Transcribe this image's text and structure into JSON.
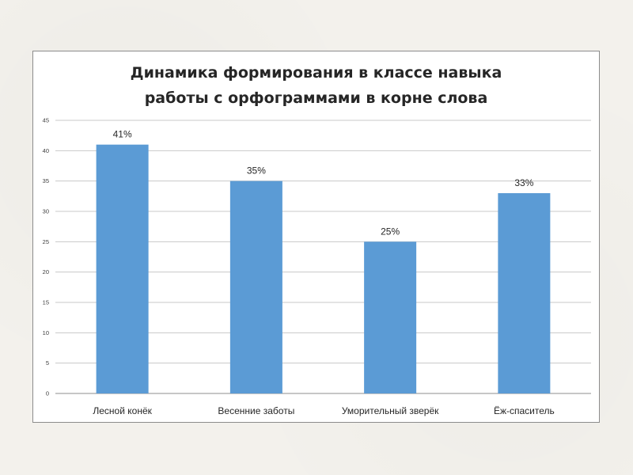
{
  "chart_data": {
    "type": "bar",
    "title_line1": "Динамика формирования в классе навыка",
    "title_line2": "работы с орфограммами в корне слова",
    "categories": [
      "Лесной конёк",
      "Весенние заботы",
      "Уморительный зверёк",
      "Ёж-спаситель"
    ],
    "values": [
      41,
      35,
      25,
      33
    ],
    "data_labels": [
      "41%",
      "35%",
      "25%",
      "33%"
    ],
    "y_ticks": [
      0,
      5,
      10,
      15,
      20,
      25,
      30,
      35,
      40,
      45
    ],
    "ylim": [
      0,
      45
    ],
    "grid": true,
    "legend": "none",
    "bar_color": "#5b9bd5"
  }
}
